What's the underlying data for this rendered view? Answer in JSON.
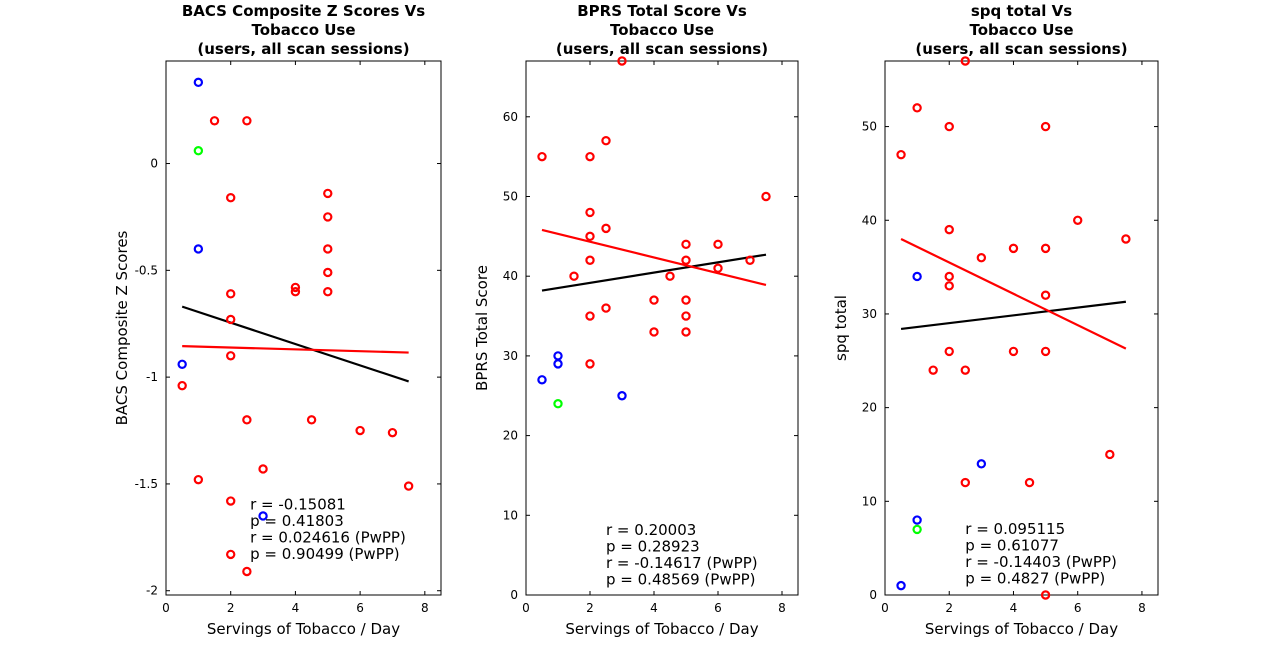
{
  "chart_data": [
    {
      "type": "scatter",
      "title": [
        "BACS Composite Z Scores Vs",
        "Tobacco Use",
        "(users, all scan sessions)"
      ],
      "xlabel": "Servings of Tobacco / Day",
      "ylabel": "BACS Composite Z Scores",
      "xlim": [
        0,
        8.5
      ],
      "ylim": [
        -2.02,
        0.48
      ],
      "xticks": [
        0,
        2,
        4,
        6,
        8
      ],
      "yticks": [
        -2,
        -1.5,
        -1,
        -0.5,
        0
      ],
      "ytick_labels": [
        "-2",
        "-1.5",
        "-1",
        "-0.5",
        "0"
      ],
      "series": [
        {
          "color": "#ff0000",
          "points": [
            [
              0.5,
              -1.04
            ],
            [
              1,
              -1.48
            ],
            [
              1.5,
              0.2
            ],
            [
              2,
              -0.16
            ],
            [
              2,
              -0.61
            ],
            [
              2,
              -0.73
            ],
            [
              2,
              -0.9
            ],
            [
              2,
              -1.58
            ],
            [
              2,
              -1.83
            ],
            [
              2.5,
              0.2
            ],
            [
              2.5,
              -1.2
            ],
            [
              2.5,
              -1.91
            ],
            [
              3,
              -1.43
            ],
            [
              4,
              -0.58
            ],
            [
              4,
              -0.6
            ],
            [
              4.5,
              -1.2
            ],
            [
              5,
              -0.14
            ],
            [
              5,
              -0.25
            ],
            [
              5,
              -0.4
            ],
            [
              5,
              -0.51
            ],
            [
              5,
              -0.6
            ],
            [
              6,
              -1.25
            ],
            [
              7,
              -1.26
            ],
            [
              7.5,
              -1.51
            ]
          ]
        },
        {
          "color": "#0000ff",
          "points": [
            [
              0.5,
              -0.94
            ],
            [
              1,
              0.38
            ],
            [
              1,
              -0.4
            ],
            [
              3,
              -1.65
            ]
          ]
        },
        {
          "color": "#00ff00",
          "points": [
            [
              1,
              0.06
            ]
          ]
        }
      ],
      "fit_lines": [
        {
          "color": "#000000",
          "from": [
            0.5,
            -0.67
          ],
          "to": [
            7.5,
            -1.02
          ]
        },
        {
          "color": "#ff0000",
          "from": [
            0.5,
            -0.855
          ],
          "to": [
            7.5,
            -0.885
          ]
        }
      ],
      "stats_pos": [
        2.6,
        -1.62
      ],
      "stats": [
        "r = -0.15081",
        "p = 0.41803",
        "r = 0.024616 (PwPP)",
        "p = 0.90499 (PwPP)"
      ]
    },
    {
      "type": "scatter",
      "title": [
        "BPRS Total Score Vs",
        "Tobacco Use",
        "(users, all scan sessions)"
      ],
      "xlabel": "Servings of Tobacco / Day",
      "ylabel": "BPRS Total Score",
      "xlim": [
        0,
        8.5
      ],
      "ylim": [
        0,
        67
      ],
      "xticks": [
        0,
        2,
        4,
        6,
        8
      ],
      "yticks": [
        0,
        10,
        20,
        30,
        40,
        50,
        60
      ],
      "ytick_labels": [
        "0",
        "10",
        "20",
        "30",
        "40",
        "50",
        "60"
      ],
      "series": [
        {
          "color": "#ff0000",
          "points": [
            [
              0.5,
              55
            ],
            [
              1.5,
              40
            ],
            [
              2,
              55
            ],
            [
              2,
              48
            ],
            [
              2,
              45
            ],
            [
              2,
              42
            ],
            [
              2,
              35
            ],
            [
              2,
              29
            ],
            [
              2.5,
              57
            ],
            [
              2.5,
              46
            ],
            [
              2.5,
              36
            ],
            [
              3,
              67
            ],
            [
              4,
              37
            ],
            [
              4,
              33
            ],
            [
              4.5,
              40
            ],
            [
              5,
              44
            ],
            [
              5,
              42
            ],
            [
              5,
              37
            ],
            [
              5,
              35
            ],
            [
              5,
              33
            ],
            [
              6,
              44
            ],
            [
              6,
              41
            ],
            [
              7,
              42
            ],
            [
              7.5,
              50
            ]
          ]
        },
        {
          "color": "#0000ff",
          "points": [
            [
              0.5,
              27
            ],
            [
              1,
              30
            ],
            [
              1,
              29
            ],
            [
              3,
              25
            ]
          ]
        },
        {
          "color": "#00ff00",
          "points": [
            [
              1,
              24
            ]
          ]
        }
      ],
      "fit_lines": [
        {
          "color": "#000000",
          "from": [
            0.5,
            38.2
          ],
          "to": [
            7.5,
            42.7
          ]
        },
        {
          "color": "#ff0000",
          "from": [
            0.5,
            45.8
          ],
          "to": [
            7.5,
            38.9
          ]
        }
      ],
      "stats_pos": [
        2.5,
        7.5
      ],
      "stats": [
        "r = 0.20003",
        "p = 0.28923",
        "r = -0.14617 (PwPP)",
        "p = 0.48569 (PwPP)"
      ]
    },
    {
      "type": "scatter",
      "title": [
        "spq total Vs",
        "Tobacco Use",
        "(users, all scan sessions)"
      ],
      "xlabel": "Servings of Tobacco / Day",
      "ylabel": "spq total",
      "xlim": [
        0,
        8.5
      ],
      "ylim": [
        0,
        57
      ],
      "xticks": [
        0,
        2,
        4,
        6,
        8
      ],
      "yticks": [
        0,
        10,
        20,
        30,
        40,
        50
      ],
      "ytick_labels": [
        "0",
        "10",
        "20",
        "30",
        "40",
        "50"
      ],
      "series": [
        {
          "color": "#ff0000",
          "points": [
            [
              0.5,
              47
            ],
            [
              1,
              52
            ],
            [
              1.5,
              24
            ],
            [
              2,
              50
            ],
            [
              2,
              39
            ],
            [
              2,
              34
            ],
            [
              2,
              33
            ],
            [
              2,
              26
            ],
            [
              2.5,
              57
            ],
            [
              2.5,
              24
            ],
            [
              2.5,
              12
            ],
            [
              3,
              36
            ],
            [
              4,
              37
            ],
            [
              4,
              26
            ],
            [
              4.5,
              12
            ],
            [
              5,
              50
            ],
            [
              5,
              37
            ],
            [
              5,
              32
            ],
            [
              5,
              26
            ],
            [
              5,
              0
            ],
            [
              6,
              40
            ],
            [
              7,
              15
            ],
            [
              7.5,
              38
            ]
          ]
        },
        {
          "color": "#0000ff",
          "points": [
            [
              0.5,
              1
            ],
            [
              1,
              34
            ],
            [
              1,
              8
            ],
            [
              3,
              14
            ]
          ]
        },
        {
          "color": "#00ff00",
          "points": [
            [
              1,
              7
            ]
          ]
        }
      ],
      "fit_lines": [
        {
          "color": "#000000",
          "from": [
            0.5,
            28.4
          ],
          "to": [
            7.5,
            31.3
          ]
        },
        {
          "color": "#ff0000",
          "from": [
            0.5,
            38.0
          ],
          "to": [
            7.5,
            26.3
          ]
        }
      ],
      "stats_pos": [
        2.5,
        6.5
      ],
      "stats": [
        "r = 0.095115",
        "p = 0.61077",
        "r = -0.14403 (PwPP)",
        "p = 0.4827 (PwPP)"
      ]
    }
  ]
}
